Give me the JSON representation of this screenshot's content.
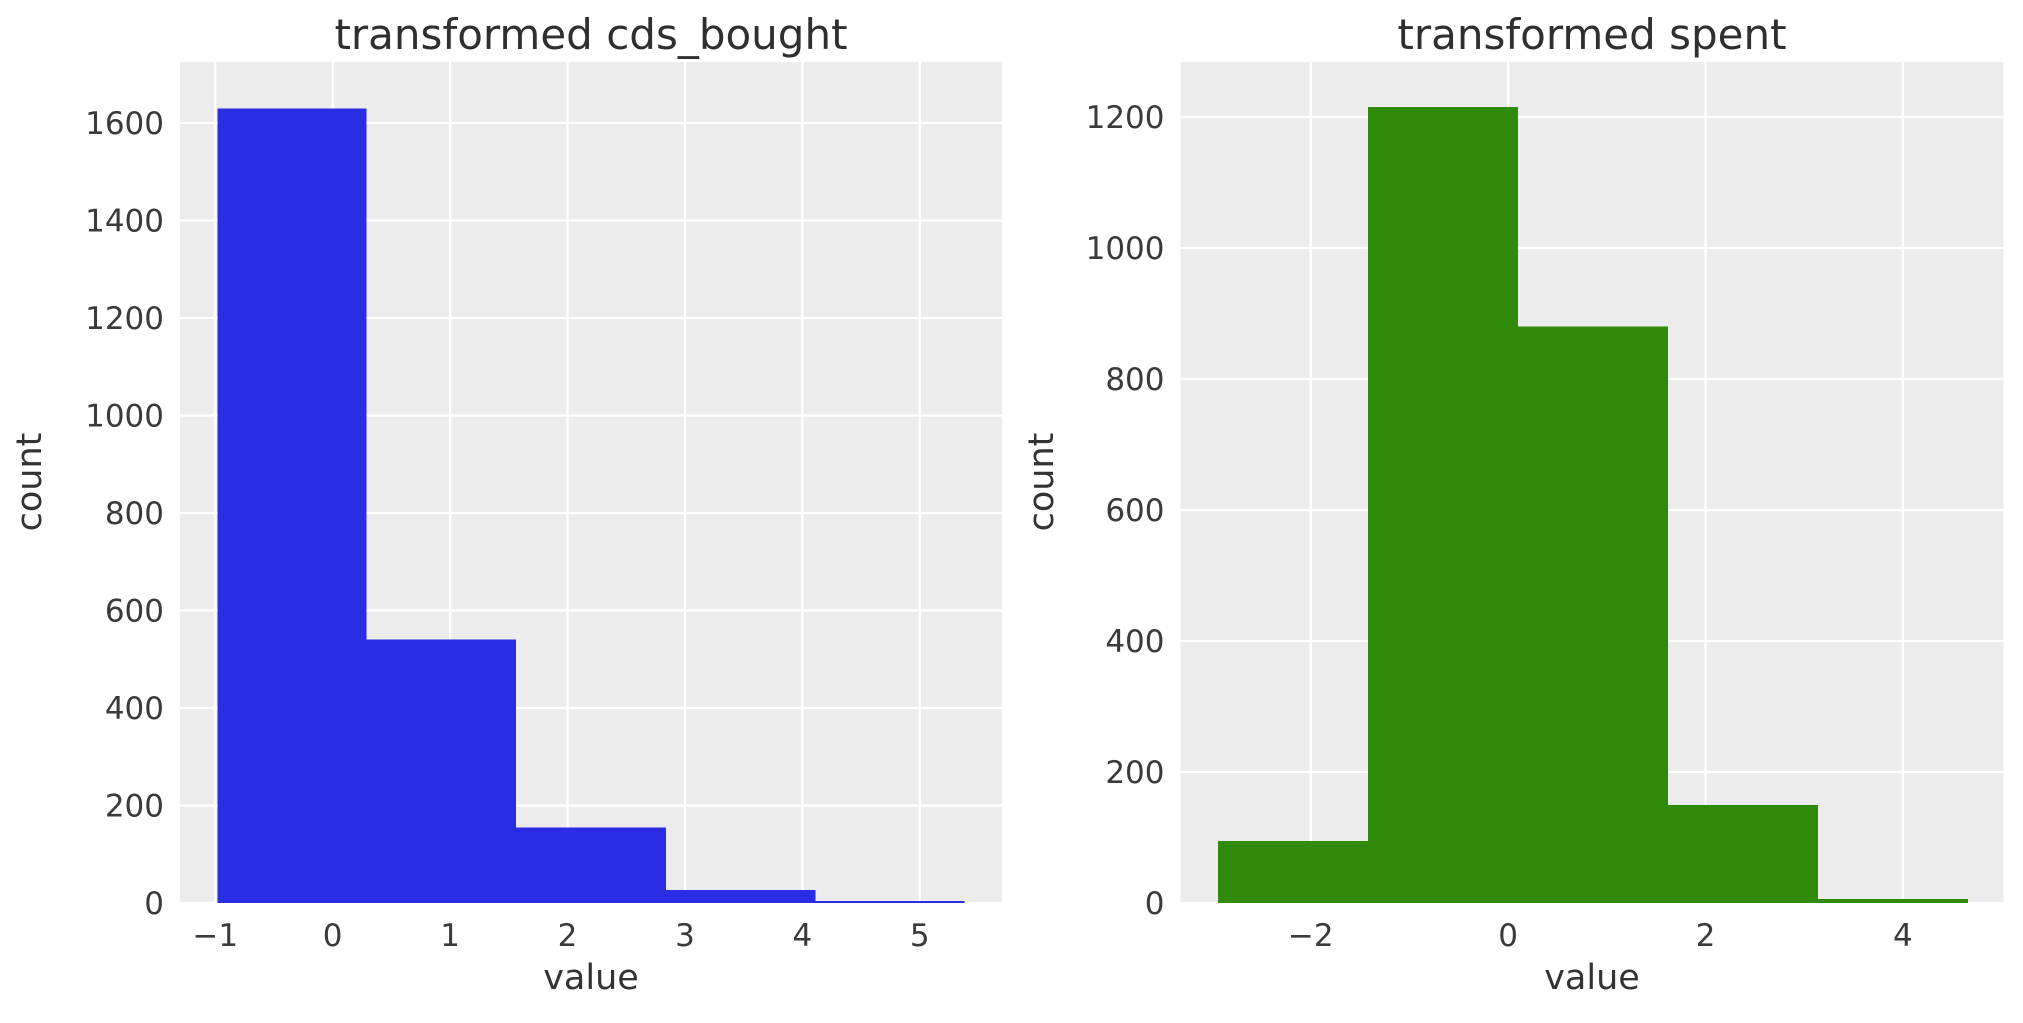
{
  "style": {
    "figure_bg": "#ffffff",
    "plot_bg": "#ececec",
    "grid_color": "#ffffff",
    "text_color": "#333333",
    "tick_label_color": "#3a3a3a"
  },
  "chart_data": [
    {
      "type": "bar",
      "subtype": "histogram",
      "title": "transformed cds_bought",
      "xlabel": "value",
      "ylabel": "count",
      "bar_color": "#2b2de4",
      "bin_edges": [
        -0.98,
        0.29,
        1.56,
        2.84,
        4.11,
        5.38
      ],
      "counts": [
        1630,
        540,
        155,
        27,
        4
      ],
      "xticks": [
        -1,
        0,
        1,
        2,
        3,
        4,
        5
      ],
      "yticks": [
        0,
        200,
        400,
        600,
        800,
        1000,
        1200,
        1400,
        1600
      ],
      "xlim": [
        -1.3,
        5.7
      ],
      "ylim": [
        0,
        1725
      ],
      "grid": true,
      "legend": null
    },
    {
      "type": "bar",
      "subtype": "histogram",
      "title": "transformed spent",
      "xlabel": "value",
      "ylabel": "count",
      "bar_color": "#2f8b09",
      "bin_edges": [
        -2.94,
        -1.42,
        0.1,
        1.62,
        3.14,
        4.66
      ],
      "counts": [
        95,
        1215,
        880,
        150,
        6
      ],
      "xticks": [
        -2,
        0,
        2,
        4
      ],
      "yticks": [
        0,
        200,
        400,
        600,
        800,
        1000,
        1200
      ],
      "xlim": [
        -3.32,
        5.02
      ],
      "ylim": [
        0,
        1284
      ],
      "grid": true,
      "legend": null
    }
  ]
}
